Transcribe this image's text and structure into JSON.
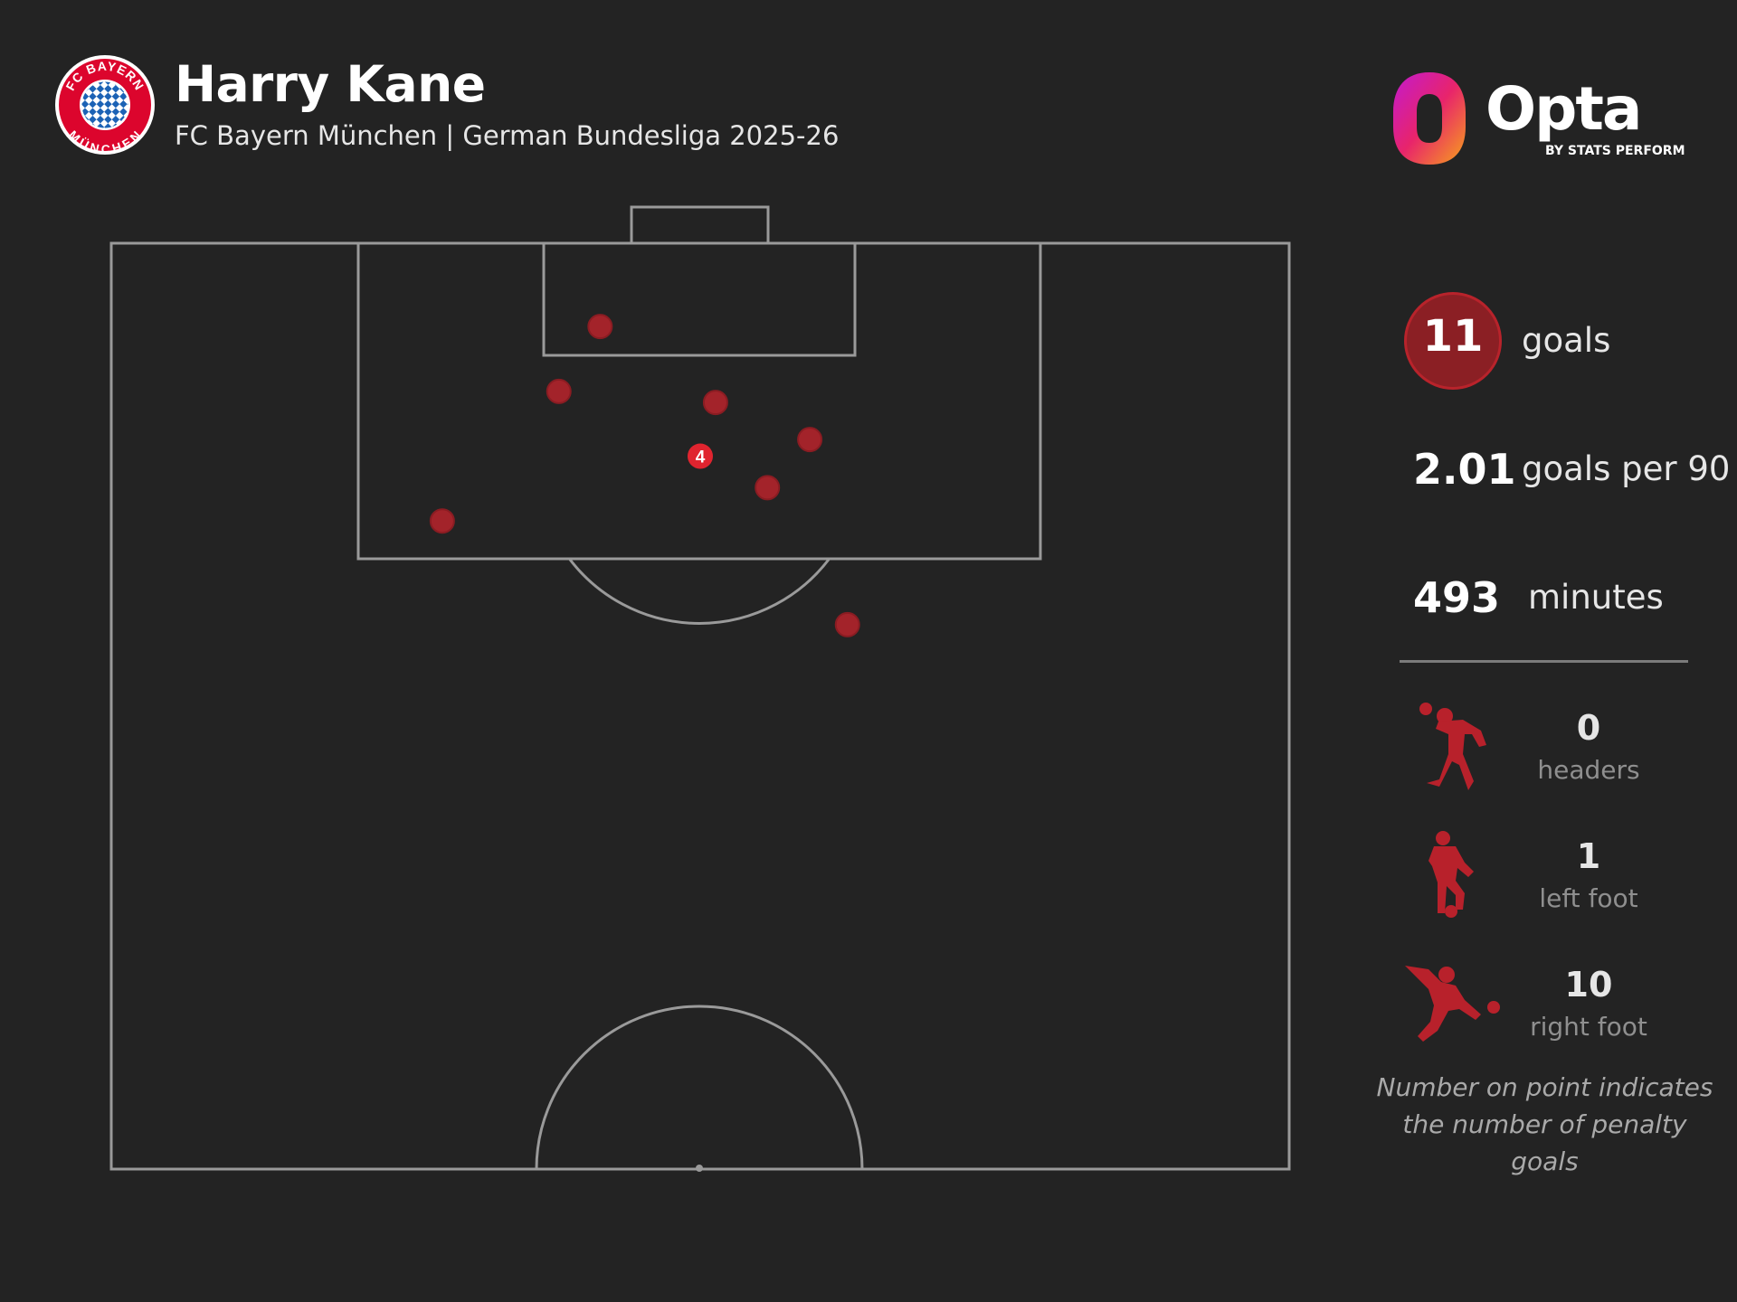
{
  "header": {
    "player_name": "Harry Kane",
    "subtitle": "FC Bayern München | German Bundesliga 2025-26"
  },
  "crest": {
    "text_top": "FC BAYERN",
    "text_bottom": "MÜNCHEN",
    "icon": "fc-bayern-crest"
  },
  "brand": {
    "wordmark": "Opta",
    "byline": "BY STATS PERFORM"
  },
  "stats": {
    "goals_value": "11",
    "goals_label": "goals",
    "per90_value": "2.01",
    "per90_label": "goals per 90",
    "minutes_value": "493",
    "minutes_label": "minutes"
  },
  "breakdown": [
    {
      "value": "0",
      "label": "headers",
      "icon": "header-silhouette-icon"
    },
    {
      "value": "1",
      "label": "left foot",
      "icon": "left-foot-silhouette-icon"
    },
    {
      "value": "10",
      "label": "right foot",
      "icon": "right-foot-silhouette-icon"
    }
  ],
  "note": {
    "line1": "Number on point indicates",
    "line2": "the number of penalty goals"
  },
  "colors": {
    "background": "#232323",
    "pitch_line": "#9a9a9a",
    "goal_point": "#a3232a",
    "penalty_point": "#e0242f",
    "badge_fill": "#8b1f24",
    "silhouette": "#b8212b"
  },
  "chart_data": {
    "type": "scatter",
    "title": "",
    "xlabel": "",
    "ylabel": "",
    "x_description": "position across pitch width, 0-100 (left to right)",
    "y_description": "distance from goal line, 0-100 (half-pitch length)",
    "xlim": [
      0,
      100
    ],
    "ylim": [
      0,
      100
    ],
    "points": [
      {
        "x": 41.5,
        "y": 9.0,
        "goals": 1
      },
      {
        "x": 38.0,
        "y": 16.0,
        "goals": 1
      },
      {
        "x": 51.3,
        "y": 17.2,
        "goals": 1
      },
      {
        "x": 59.3,
        "y": 21.2,
        "goals": 1
      },
      {
        "x": 50.0,
        "y": 23.0,
        "goals": 4,
        "label": "4",
        "penalty": true
      },
      {
        "x": 55.7,
        "y": 26.4,
        "goals": 1
      },
      {
        "x": 28.1,
        "y": 30.0,
        "goals": 1
      },
      {
        "x": 62.5,
        "y": 41.2,
        "goals": 1
      }
    ]
  }
}
